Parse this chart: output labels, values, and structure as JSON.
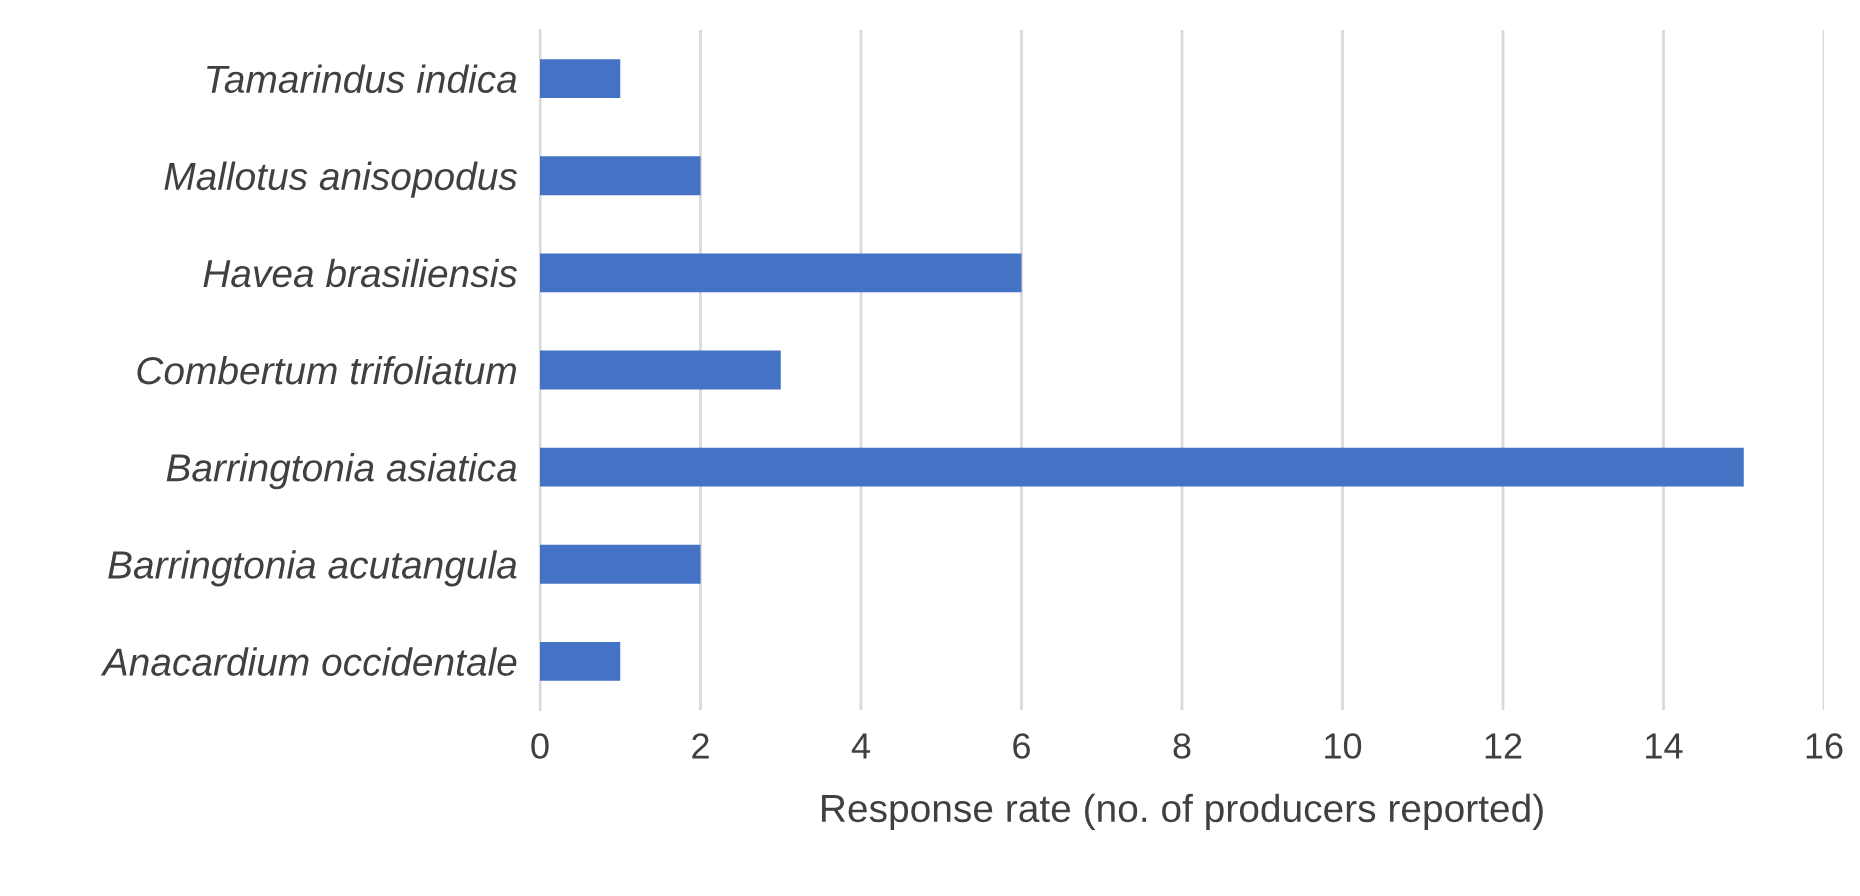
{
  "chart_data": {
    "type": "bar",
    "orientation": "horizontal",
    "xlabel": "Response rate (no. of producers reported)",
    "categories": [
      "Tamarindus indica",
      "Mallotus anisopodus",
      "Havea brasiliensis",
      "Combertum trifoliatum",
      "Barringtonia asiatica",
      "Barringtonia acutangula",
      "Anacardium occidentale"
    ],
    "values": [
      1,
      2,
      6,
      3,
      15,
      2,
      1
    ],
    "color": "#4472c4",
    "xlim": [
      0,
      16
    ],
    "xticks": [
      0,
      2,
      4,
      6,
      8,
      10,
      12,
      14,
      16
    ],
    "grid": "x",
    "legend": false
  }
}
